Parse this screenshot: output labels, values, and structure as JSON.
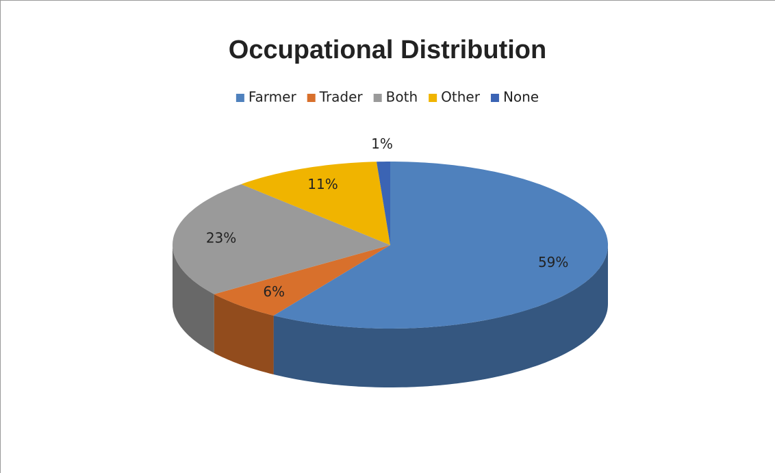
{
  "chart_data": {
    "type": "pie",
    "title": "Occupational Distribution",
    "categories": [
      "Farmer",
      "Trader",
      "Both",
      "Other",
      "None"
    ],
    "values": [
      59,
      6,
      23,
      11,
      1
    ],
    "value_labels": [
      "59%",
      "6%",
      "23%",
      "11%",
      "1%"
    ],
    "colors": [
      "#4f81bd",
      "#d8702c",
      "#9a9a9a",
      "#f0b400",
      "#3b64b4"
    ],
    "legend": "top"
  }
}
